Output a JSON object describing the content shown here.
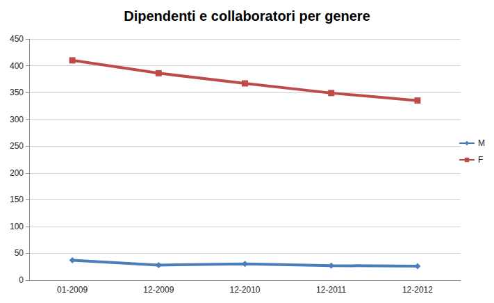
{
  "chart_data": {
    "type": "line",
    "title": "Dipendenti e collaboratori per genere",
    "categories": [
      "01-2009",
      "12-2009",
      "12-2010",
      "12-2011",
      "12-2012"
    ],
    "series": [
      {
        "name": "M",
        "color": "#4a7ebb",
        "marker": "diamond",
        "line_style": "solid",
        "values": [
          37,
          28,
          30,
          27,
          26
        ]
      },
      {
        "name": "F",
        "color": "#be4b48",
        "marker": "square",
        "line_style": "solid",
        "values": [
          410,
          386,
          367,
          349,
          335
        ]
      }
    ],
    "ylim": [
      0,
      450
    ],
    "yticks": [
      0,
      50,
      100,
      150,
      200,
      250,
      300,
      350,
      400,
      450
    ],
    "grid": true,
    "legend": "right"
  }
}
